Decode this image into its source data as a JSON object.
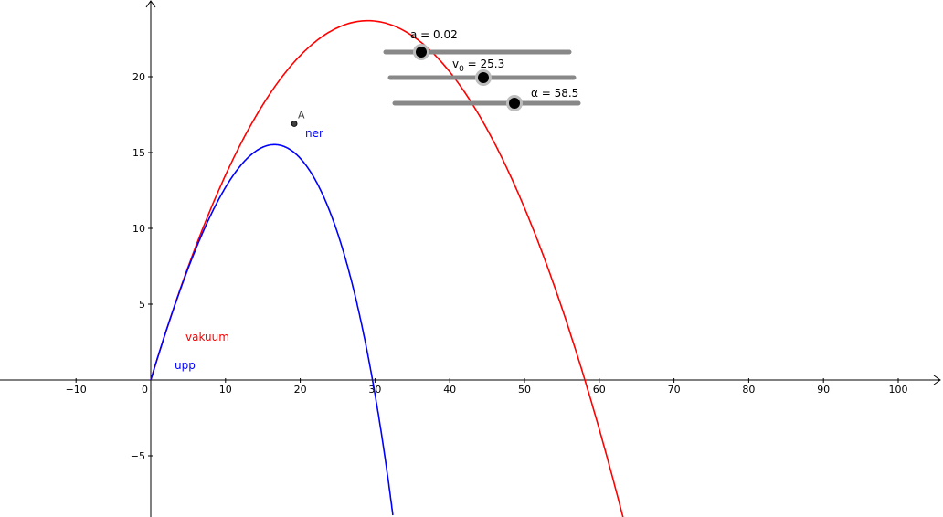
{
  "axes": {
    "x_ticks": [
      "−10",
      "0",
      "10",
      "20",
      "30",
      "40",
      "50",
      "60",
      "70",
      "80",
      "90",
      "100"
    ],
    "y_ticks": [
      "−5",
      "5",
      "10",
      "15",
      "20"
    ]
  },
  "curves": {
    "vacuum": {
      "label": "vakuum",
      "color": "#ff0000"
    },
    "drag_up": {
      "label": "upp",
      "color": "#0000ff"
    },
    "drag_down": {
      "label": "ner",
      "color": "#0000ff"
    }
  },
  "point_A": {
    "label": "A",
    "x": 19.2,
    "y": 16.9
  },
  "sliders": {
    "a": {
      "name": "a",
      "value": "0.02",
      "text": "a = 0.02"
    },
    "v0": {
      "name": "v",
      "subscript": "0",
      "value": "25.3",
      "text": " = 25.3"
    },
    "alpha": {
      "name": "α",
      "value": "58.5",
      "text": "α = 58.5"
    }
  },
  "colors": {
    "vacuum": "#ff0000",
    "drag": "#0000ff",
    "slider": "#888888"
  }
}
